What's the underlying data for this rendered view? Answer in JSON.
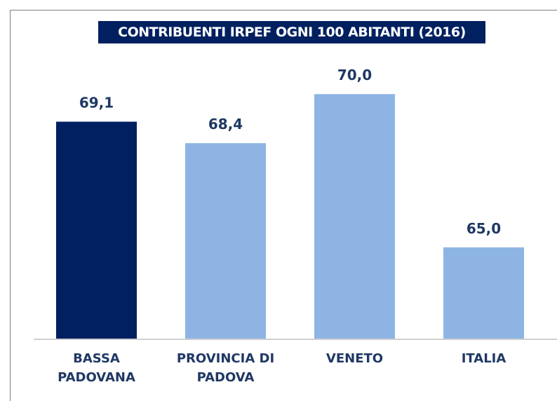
{
  "chart_data": {
    "type": "bar",
    "title": "CONTRIBUENTI IRPEF OGNI 100 ABITANTI (2016)",
    "categories": [
      "BASSA PADOVANA",
      "PROVINCIA DI PADOVA",
      "VENETO",
      "ITALIA"
    ],
    "values": [
      69.1,
      68.4,
      70.0,
      65.0
    ],
    "value_labels": [
      "69,1",
      "68,4",
      "70,0",
      "65,0"
    ],
    "colors": [
      "#002060",
      "#8eb4e3",
      "#8eb4e3",
      "#8eb4e3"
    ],
    "ylim": [
      62,
      72
    ]
  }
}
